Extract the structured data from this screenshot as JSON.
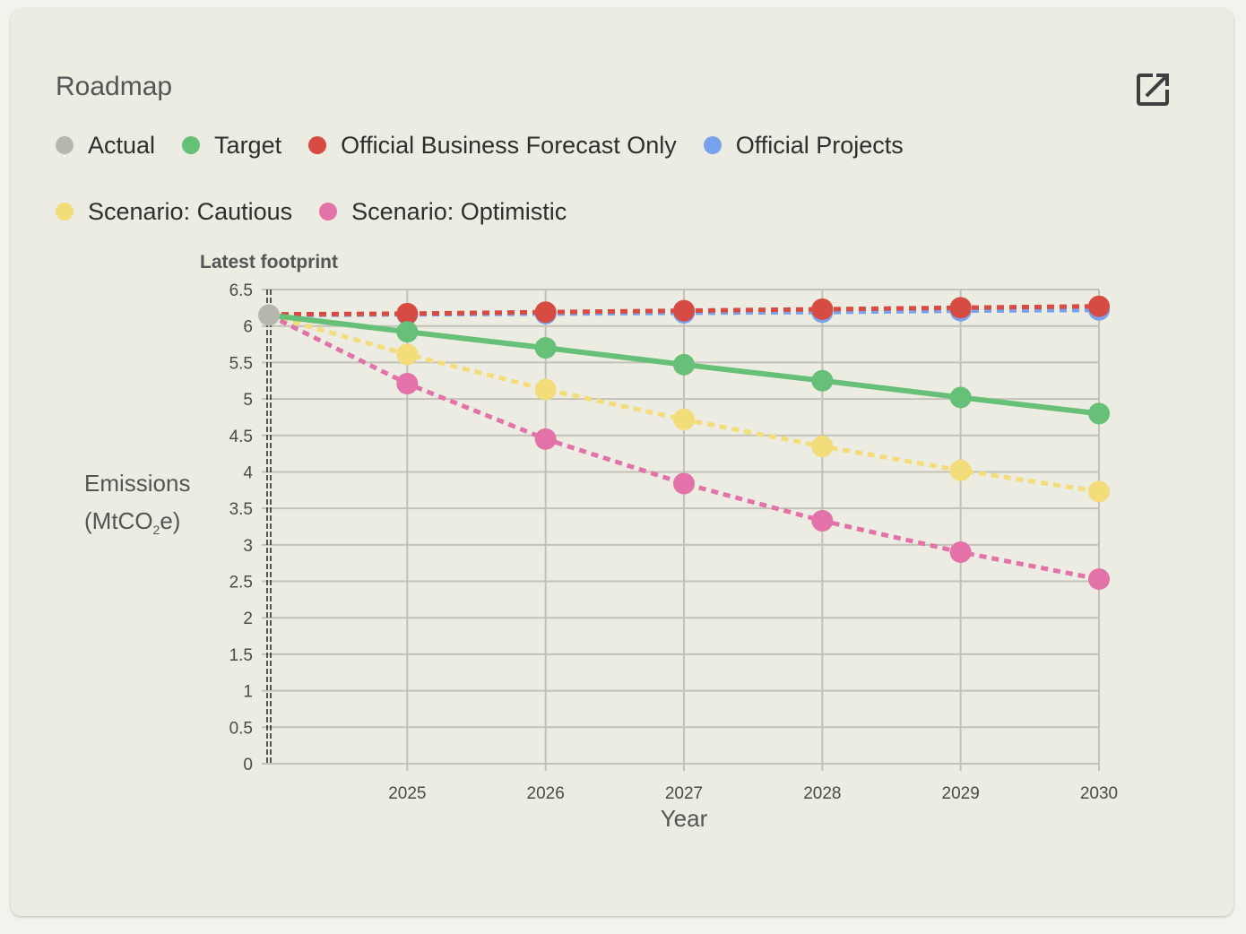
{
  "card": {
    "title": "Roadmap",
    "open_icon": "open-in-new-icon"
  },
  "legend": [
    {
      "label": "Actual",
      "color": "#b6b8b0"
    },
    {
      "label": "Target",
      "color": "#66c077"
    },
    {
      "label": "Official Business Forecast Only",
      "color": "#d64b42"
    },
    {
      "label": "Official Projects",
      "color": "#79a2ec"
    },
    {
      "label": "Scenario: Cautious",
      "color": "#f3dc7a"
    },
    {
      "label": "Scenario: Optimistic",
      "color": "#e272a7"
    }
  ],
  "axis": {
    "ylabel_main": "Emissions",
    "ylabel_unit_pre": "(MtCO",
    "ylabel_unit_sub": "2",
    "ylabel_unit_post": "e)",
    "annotation": "Latest footprint"
  },
  "chart_data": {
    "type": "line",
    "title": "Roadmap",
    "xlabel": "Year",
    "ylabel": "Emissions (MtCO2e)",
    "x": [
      2024,
      2025,
      2026,
      2027,
      2028,
      2029,
      2030
    ],
    "xticks": [
      "2025",
      "2026",
      "2027",
      "2028",
      "2029",
      "2030"
    ],
    "ylim": [
      0,
      6.5
    ],
    "yticks": [
      "0",
      "0.5",
      "1",
      "1.5",
      "2",
      "2.5",
      "3",
      "3.5",
      "4",
      "4.5",
      "5",
      "5.5",
      "6",
      "6.5"
    ],
    "grid": true,
    "legend_position": "top",
    "annotation": {
      "label": "Latest footprint",
      "x": 2024
    },
    "series": [
      {
        "name": "Actual",
        "color": "#b6b8b0",
        "style": "none",
        "points": [
          [
            2024,
            6.15
          ]
        ]
      },
      {
        "name": "Official Projects",
        "color": "#79a2ec",
        "style": "dotted",
        "points": [
          [
            2024,
            6.15
          ],
          [
            2025,
            6.16
          ],
          [
            2026,
            6.17
          ],
          [
            2027,
            6.18
          ],
          [
            2028,
            6.19
          ],
          [
            2029,
            6.21
          ],
          [
            2030,
            6.22
          ]
        ]
      },
      {
        "name": "Official Business Forecast Only",
        "color": "#d64b42",
        "style": "dotted",
        "points": [
          [
            2024,
            6.16
          ],
          [
            2025,
            6.17
          ],
          [
            2026,
            6.19
          ],
          [
            2027,
            6.21
          ],
          [
            2028,
            6.23
          ],
          [
            2029,
            6.25
          ],
          [
            2030,
            6.27
          ]
        ]
      },
      {
        "name": "Scenario: Cautious",
        "color": "#f3dc7a",
        "style": "dotted",
        "points": [
          [
            2024,
            6.15
          ],
          [
            2025,
            5.61
          ],
          [
            2026,
            5.13
          ],
          [
            2027,
            4.72
          ],
          [
            2028,
            4.35
          ],
          [
            2029,
            4.02
          ],
          [
            2030,
            3.73
          ]
        ]
      },
      {
        "name": "Scenario: Optimistic",
        "color": "#e272a7",
        "style": "dotted",
        "points": [
          [
            2024,
            6.15
          ],
          [
            2025,
            5.21
          ],
          [
            2026,
            4.45
          ],
          [
            2027,
            3.84
          ],
          [
            2028,
            3.33
          ],
          [
            2029,
            2.9
          ],
          [
            2030,
            2.53
          ]
        ]
      },
      {
        "name": "Target",
        "color": "#66c077",
        "style": "solid",
        "points": [
          [
            2024,
            6.15
          ],
          [
            2025,
            5.92
          ],
          [
            2026,
            5.7
          ],
          [
            2027,
            5.47
          ],
          [
            2028,
            5.25
          ],
          [
            2029,
            5.02
          ],
          [
            2030,
            4.8
          ]
        ]
      }
    ]
  }
}
